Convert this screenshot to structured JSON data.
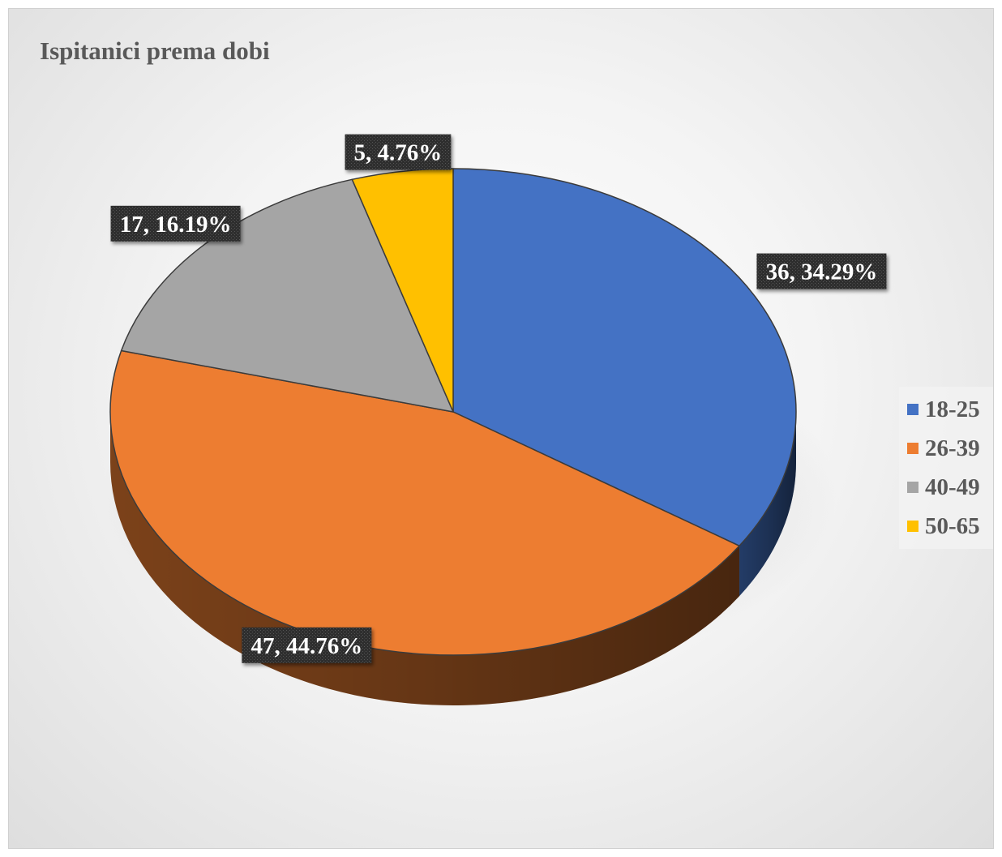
{
  "chart_data": {
    "type": "pie",
    "title": "Ispitanici prema dobi",
    "categories": [
      "18-25",
      "26-39",
      "40-49",
      "50-65"
    ],
    "values": [
      36,
      47,
      17,
      5
    ],
    "percentages": [
      "34.29%",
      "44.76%",
      "16.19%",
      "4.76%"
    ],
    "data_labels": [
      "36, 34.29%",
      "47, 44.76%",
      "17, 16.19%",
      "5, 4.76%"
    ],
    "colors": [
      "#4472C4",
      "#ED7D31",
      "#A5A5A5",
      "#FFC000"
    ],
    "legend_position": "right",
    "style": "3d"
  }
}
